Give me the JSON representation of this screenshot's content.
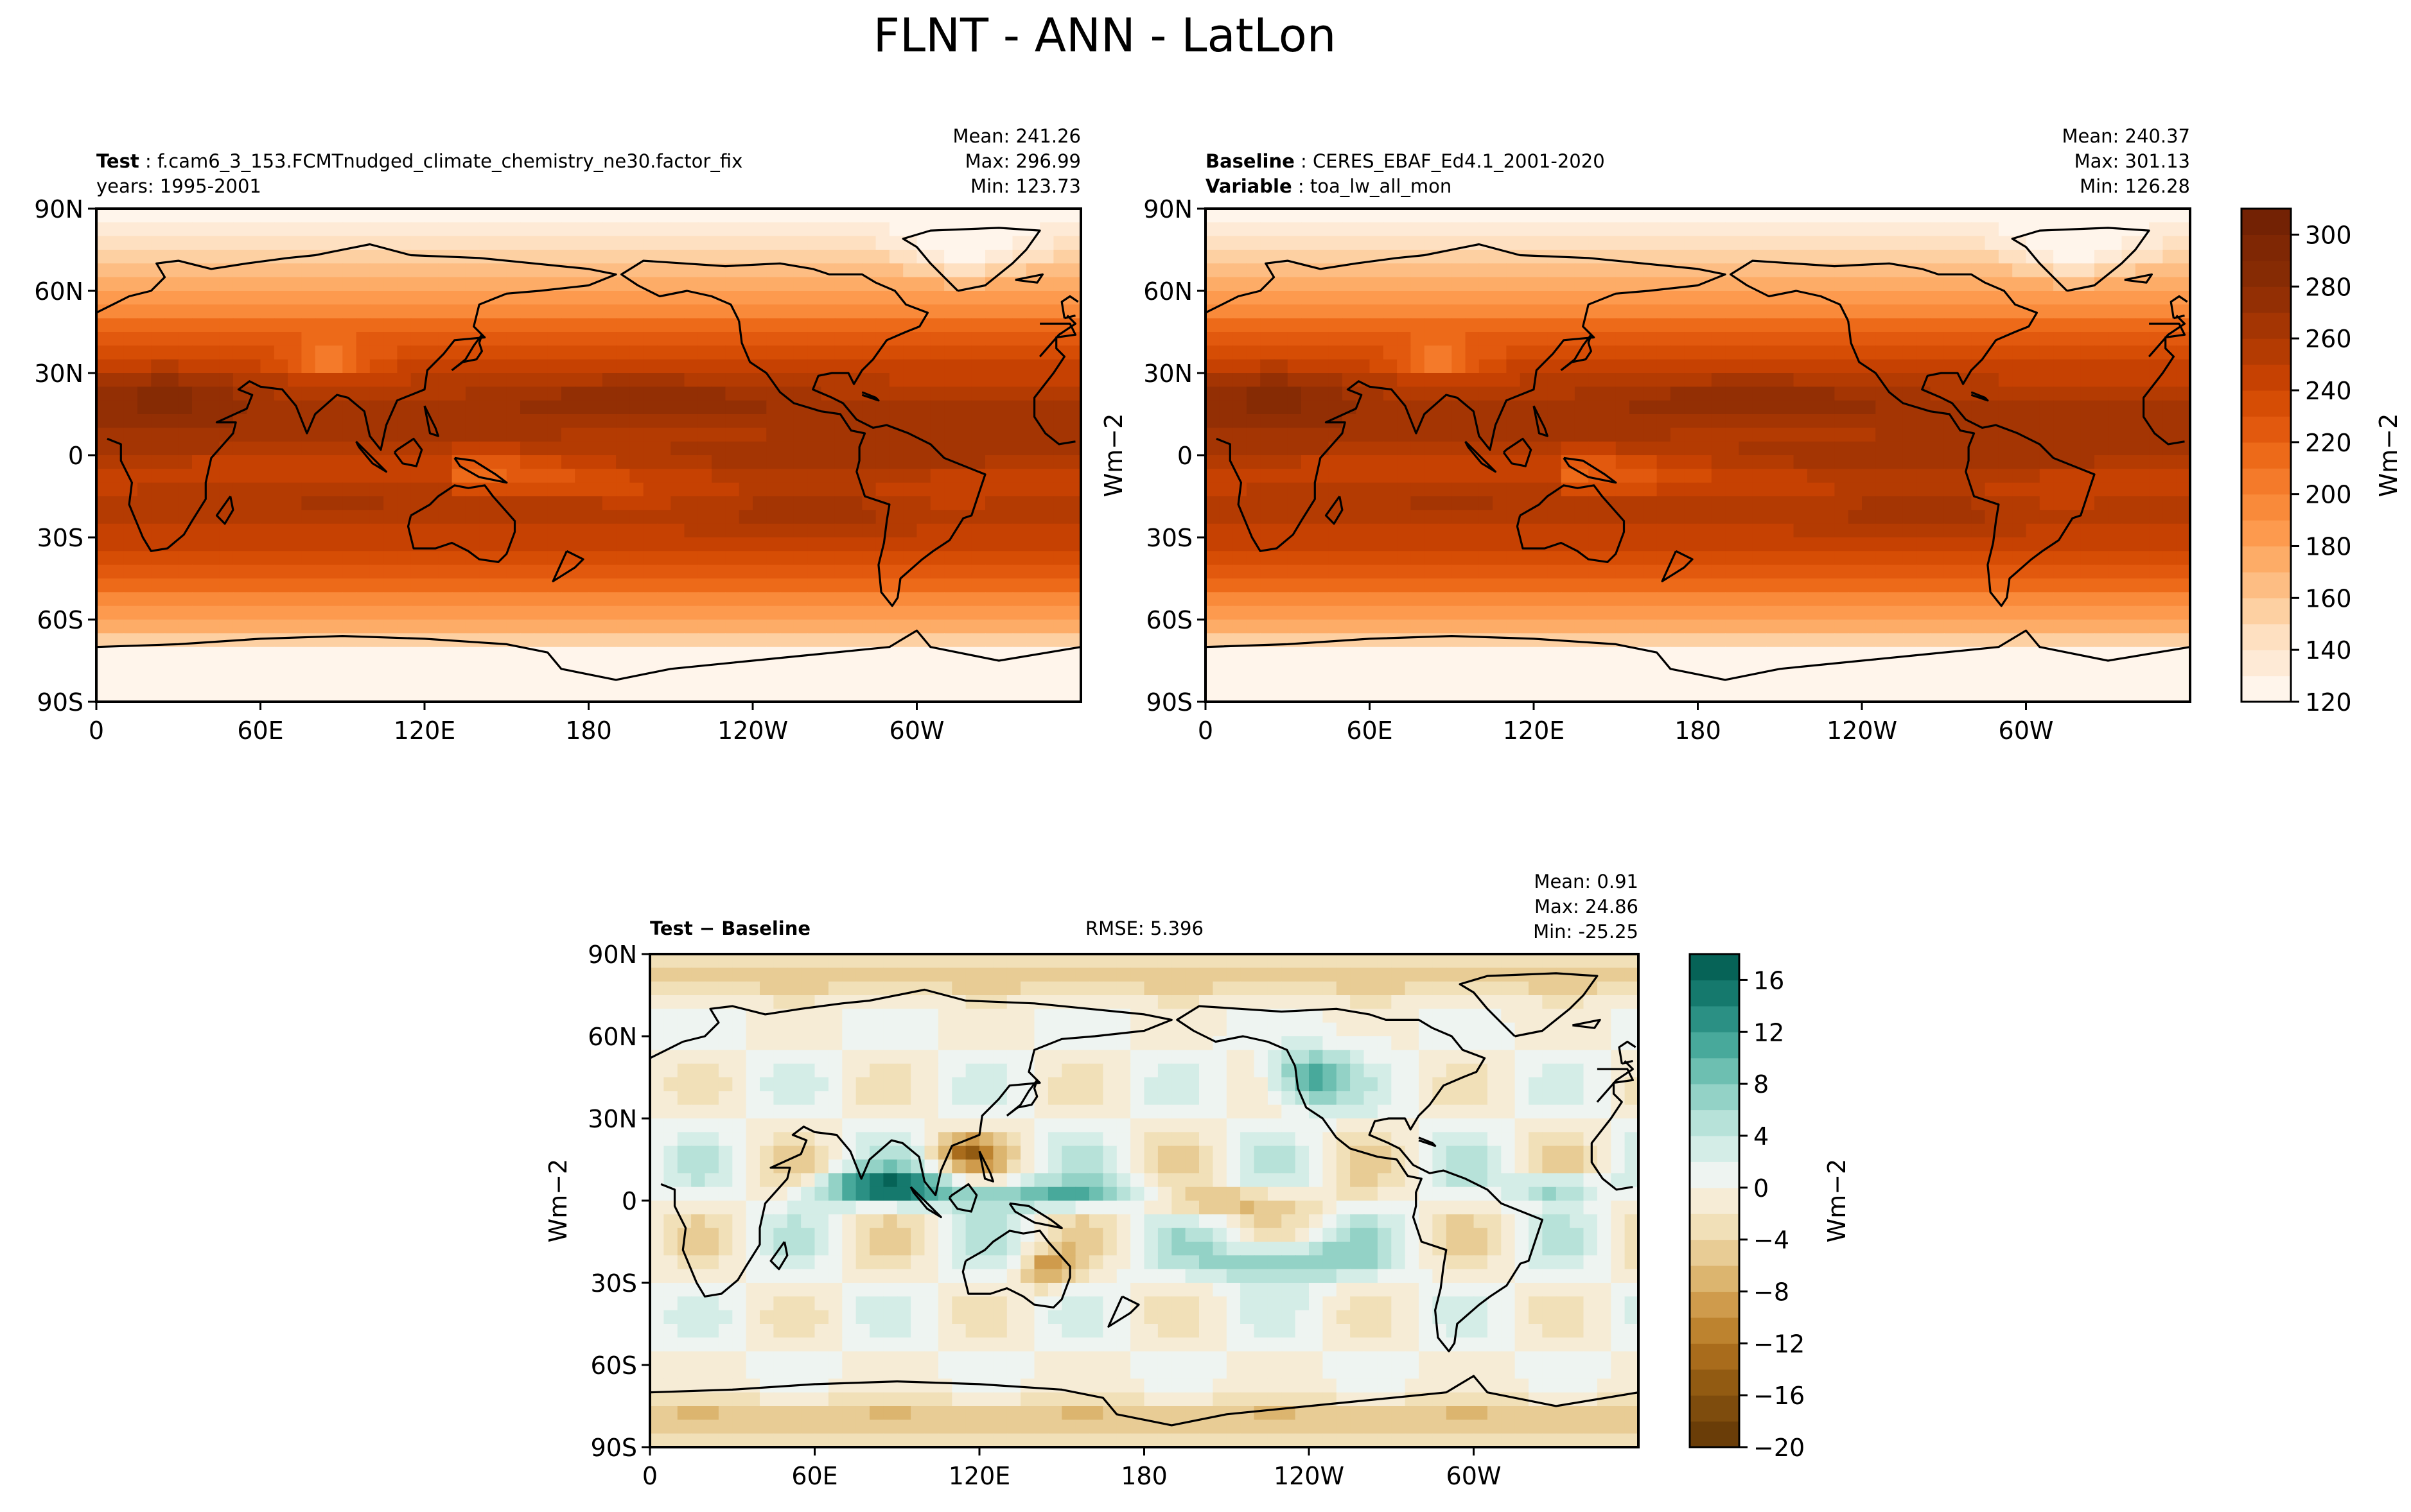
{
  "figure": {
    "title": "FLNT - ANN - LatLon"
  },
  "chart_data": [
    {
      "type": "heatmap",
      "panel": "test",
      "label_bold": "Test",
      "label_text": "f.cam6_3_153.FCMTnudged_climate_chemistry_ne30.factor_fix",
      "line2": "years: 1995-2001",
      "stats": {
        "mean": "Mean: 241.26",
        "max": "Max: 296.99",
        "min": "Min: 123.73"
      },
      "x_ticks": [
        "0",
        "60E",
        "120E",
        "180",
        "120W",
        "60W"
      ],
      "y_ticks": [
        "90N",
        "60N",
        "30N",
        "0",
        "30S",
        "60S",
        "90S"
      ],
      "x_range": [
        0,
        360
      ],
      "y_range": [
        -90,
        90
      ]
    },
    {
      "type": "heatmap",
      "panel": "baseline",
      "label_bold": "Baseline",
      "label_text": "CERES_EBAF_Ed4.1_2001-2020",
      "label2_bold": "Variable",
      "label2_text": "toa_lw_all_mon",
      "stats": {
        "mean": "Mean: 240.37",
        "max": "Max: 301.13",
        "min": "Min: 126.28"
      },
      "ylabel": "Wm−2",
      "x_ticks": [
        "0",
        "60E",
        "120E",
        "180",
        "120W",
        "60W"
      ],
      "y_ticks": [
        "90N",
        "60N",
        "30N",
        "0",
        "30S",
        "60S",
        "90S"
      ],
      "x_range": [
        0,
        360
      ],
      "y_range": [
        -90,
        90
      ]
    },
    {
      "type": "heatmap",
      "panel": "difference",
      "label_bold": "Test − Baseline",
      "rmse": "RMSE: 5.396",
      "stats": {
        "mean": "Mean:  0.91",
        "max": "Max: 24.86",
        "min": "Min: -25.25"
      },
      "ylabel": "Wm−2",
      "x_ticks": [
        "0",
        "60E",
        "120E",
        "180",
        "120W",
        "60W"
      ],
      "y_ticks": [
        "90N",
        "60N",
        "30N",
        "0",
        "30S",
        "60S",
        "90S"
      ],
      "x_range": [
        0,
        360
      ],
      "y_range": [
        -90,
        90
      ]
    }
  ],
  "colorbars": [
    {
      "name": "shared-colorbar",
      "ylabel": "Wm−2",
      "range": [
        120,
        310
      ],
      "ticks": [
        120,
        140,
        160,
        180,
        200,
        220,
        240,
        260,
        280,
        300
      ],
      "colors": [
        "#fff5eb",
        "#feead6",
        "#fee0c1",
        "#fdd0a2",
        "#fdbd83",
        "#fdac67",
        "#fd9a4e",
        "#f98a3a",
        "#f47a2a",
        "#ed6a19",
        "#e2590e",
        "#d64d05",
        "#c64102",
        "#b43b02",
        "#a43503",
        "#932f04",
        "#862b04",
        "#7f2704",
        "#732204"
      ]
    },
    {
      "name": "diff-colorbar",
      "ylabel": "Wm−2",
      "range": [
        -20,
        18
      ],
      "ticks": [
        -20,
        -16,
        -12,
        -8,
        -4,
        0,
        4,
        8,
        12,
        16
      ],
      "colors": [
        "#6a3d08",
        "#7e4c0d",
        "#925b12",
        "#a96c1c",
        "#bd832f",
        "#cf9b4c",
        "#dcb56f",
        "#e8cc95",
        "#f1e0b8",
        "#f6ecd6",
        "#eef4f1",
        "#d4ede7",
        "#b7e2d9",
        "#93d2c6",
        "#6dbfb1",
        "#48a99b",
        "#2b9084",
        "#15796d",
        "#066357"
      ]
    }
  ]
}
